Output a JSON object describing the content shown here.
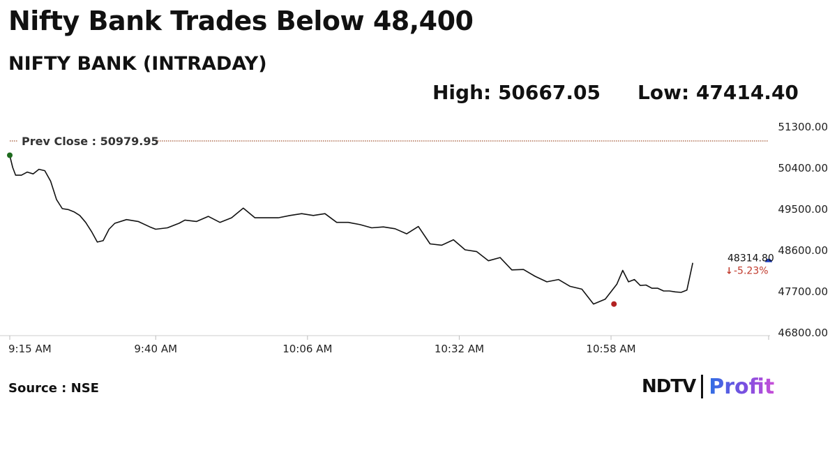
{
  "headline": "Nifty Bank Trades Below 48,400",
  "subtitle": "NIFTY BANK (INTRADAY)",
  "stats": {
    "high": "High: 50667.05",
    "low": "Low: 47414.40"
  },
  "source": "Source : NSE",
  "logo": {
    "brand": "NDTV",
    "product": "Profit"
  },
  "colors": {
    "line": "#111111",
    "prev_close_line": "#a0522d",
    "start_marker": "#1e6b1e",
    "low_marker": "#b22222",
    "end_marker": "#1f3fbf",
    "change_negative": "#c0392b",
    "axis": "#cccccc"
  },
  "chart_data": {
    "type": "line",
    "title": "NIFTY BANK (INTRADAY)",
    "ylim": [
      46800,
      51300
    ],
    "y_ticks": [
      "51300.00",
      "50400.00",
      "49500.00",
      "48600.00",
      "47700.00",
      "46800.00"
    ],
    "x_ticks": [
      "9:15 AM",
      "9:40 AM",
      "10:06 AM",
      "10:32 AM",
      "10:58 AM"
    ],
    "x_tick_minutes": [
      0,
      25,
      51,
      77,
      103
    ],
    "x_range_minutes": [
      0,
      130
    ],
    "prev_close": {
      "label": "Prev Close : 50979.95",
      "value": 50979.95
    },
    "last": {
      "value_label": "48314.80",
      "change_label": "-5.23%",
      "direction": "down"
    },
    "series": [
      {
        "x": [
          0,
          0.5,
          1,
          2,
          3,
          4,
          5,
          6,
          7,
          8,
          9,
          10,
          11,
          12,
          13,
          14,
          15,
          16,
          17,
          18,
          20,
          22,
          24,
          25,
          27,
          29,
          30,
          32,
          34,
          36,
          38,
          40,
          42,
          44,
          46,
          48,
          50,
          52,
          54,
          56,
          58,
          60,
          62,
          64,
          66,
          68,
          70,
          72,
          74,
          76,
          78,
          80,
          82,
          84,
          86,
          88,
          90,
          92,
          94,
          96,
          98,
          100,
          102,
          104,
          105,
          106,
          107,
          108,
          109,
          110,
          111,
          112,
          113,
          114,
          115,
          116,
          117
        ],
        "values": [
          50660,
          50400,
          50230,
          50230,
          50300,
          50260,
          50360,
          50330,
          50100,
          49700,
          49500,
          49480,
          49430,
          49350,
          49200,
          49000,
          48770,
          48800,
          49050,
          49180,
          49260,
          49220,
          49100,
          49050,
          49080,
          49180,
          49250,
          49220,
          49330,
          49200,
          49300,
          49510,
          49300,
          49300,
          49300,
          49350,
          49390,
          49350,
          49390,
          49200,
          49200,
          49150,
          49080,
          49100,
          49060,
          48950,
          49110,
          48730,
          48700,
          48820,
          48600,
          48560,
          48360,
          48430,
          48160,
          48170,
          48020,
          47900,
          47950,
          47800,
          47740,
          47414.4,
          47520,
          47850,
          48150,
          47900,
          47950,
          47820,
          47830,
          47760,
          47760,
          47700,
          47700,
          47680,
          47670,
          47720,
          48314.8
        ]
      }
    ],
    "markers": [
      {
        "label": "open",
        "x": 0,
        "y": 50667.05
      },
      {
        "label": "day-low",
        "x": 103.5,
        "y": 47414.4
      },
      {
        "label": "last",
        "x": 117,
        "y": 48314.8
      }
    ]
  }
}
